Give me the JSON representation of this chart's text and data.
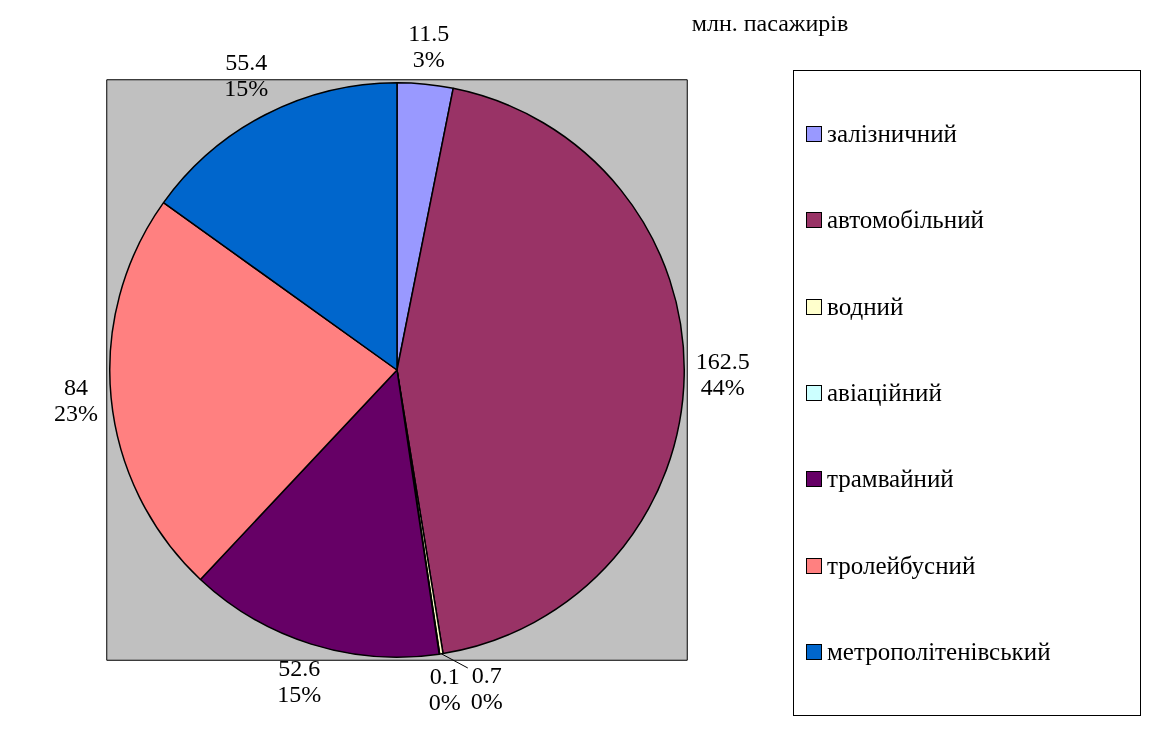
{
  "chart_data": {
    "type": "pie",
    "title": "млн. пасажирів",
    "categories": [
      "залізничний",
      "автомобільний",
      "водний",
      "авіаційний",
      "трамвайний",
      "тролейбусний",
      "метрополітенівський"
    ],
    "values": [
      11.5,
      162.5,
      0.7,
      0.1,
      52.6,
      84,
      55.4
    ],
    "colors": [
      "#9999ff",
      "#993366",
      "#ffffcc",
      "#ccffff",
      "#660066",
      "#ff8080",
      "#0066cc"
    ],
    "value_labels": [
      "11.5\n3%",
      "162.5\n44%",
      "0.7\n0%",
      "0.1\n0%",
      "52.6\n15%",
      "84\n23%",
      "55.4\n15%"
    ],
    "legend": "right"
  }
}
